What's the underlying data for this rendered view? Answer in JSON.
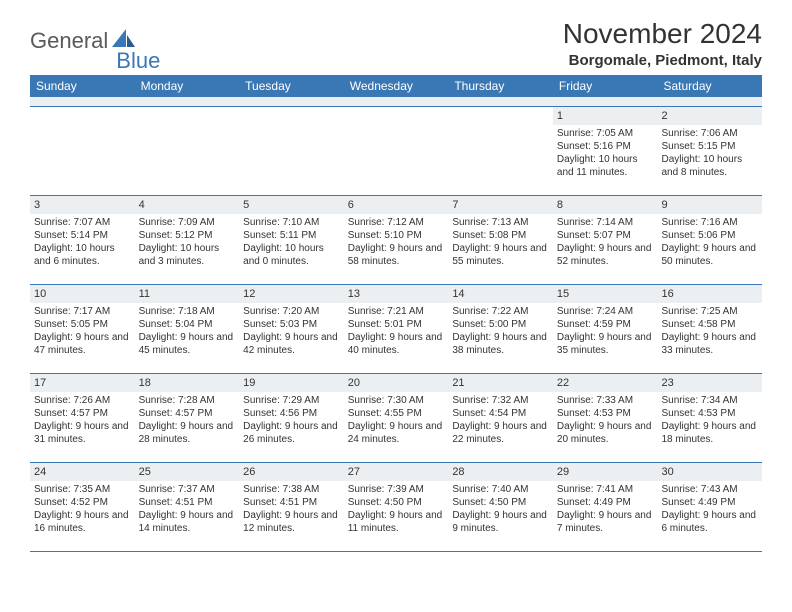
{
  "logo": {
    "part1": "General",
    "part2": "Blue"
  },
  "title": "November 2024",
  "location": "Borgomale, Piedmont, Italy",
  "colors": {
    "header_bg": "#3a78b5",
    "header_text": "#ffffff",
    "daynum_bg": "#eceff1",
    "border": "#3a78b5",
    "text": "#333333",
    "logo_gray": "#5a5a5a",
    "logo_blue": "#3a78b5",
    "background": "#ffffff"
  },
  "day_headers": [
    "Sunday",
    "Monday",
    "Tuesday",
    "Wednesday",
    "Thursday",
    "Friday",
    "Saturday"
  ],
  "weeks": [
    [
      {
        "empty": true
      },
      {
        "empty": true
      },
      {
        "empty": true
      },
      {
        "empty": true
      },
      {
        "empty": true
      },
      {
        "day": "1",
        "sunrise": "Sunrise: 7:05 AM",
        "sunset": "Sunset: 5:16 PM",
        "daylight": "Daylight: 10 hours and 11 minutes."
      },
      {
        "day": "2",
        "sunrise": "Sunrise: 7:06 AM",
        "sunset": "Sunset: 5:15 PM",
        "daylight": "Daylight: 10 hours and 8 minutes."
      }
    ],
    [
      {
        "day": "3",
        "sunrise": "Sunrise: 7:07 AM",
        "sunset": "Sunset: 5:14 PM",
        "daylight": "Daylight: 10 hours and 6 minutes."
      },
      {
        "day": "4",
        "sunrise": "Sunrise: 7:09 AM",
        "sunset": "Sunset: 5:12 PM",
        "daylight": "Daylight: 10 hours and 3 minutes."
      },
      {
        "day": "5",
        "sunrise": "Sunrise: 7:10 AM",
        "sunset": "Sunset: 5:11 PM",
        "daylight": "Daylight: 10 hours and 0 minutes."
      },
      {
        "day": "6",
        "sunrise": "Sunrise: 7:12 AM",
        "sunset": "Sunset: 5:10 PM",
        "daylight": "Daylight: 9 hours and 58 minutes."
      },
      {
        "day": "7",
        "sunrise": "Sunrise: 7:13 AM",
        "sunset": "Sunset: 5:08 PM",
        "daylight": "Daylight: 9 hours and 55 minutes."
      },
      {
        "day": "8",
        "sunrise": "Sunrise: 7:14 AM",
        "sunset": "Sunset: 5:07 PM",
        "daylight": "Daylight: 9 hours and 52 minutes."
      },
      {
        "day": "9",
        "sunrise": "Sunrise: 7:16 AM",
        "sunset": "Sunset: 5:06 PM",
        "daylight": "Daylight: 9 hours and 50 minutes."
      }
    ],
    [
      {
        "day": "10",
        "sunrise": "Sunrise: 7:17 AM",
        "sunset": "Sunset: 5:05 PM",
        "daylight": "Daylight: 9 hours and 47 minutes."
      },
      {
        "day": "11",
        "sunrise": "Sunrise: 7:18 AM",
        "sunset": "Sunset: 5:04 PM",
        "daylight": "Daylight: 9 hours and 45 minutes."
      },
      {
        "day": "12",
        "sunrise": "Sunrise: 7:20 AM",
        "sunset": "Sunset: 5:03 PM",
        "daylight": "Daylight: 9 hours and 42 minutes."
      },
      {
        "day": "13",
        "sunrise": "Sunrise: 7:21 AM",
        "sunset": "Sunset: 5:01 PM",
        "daylight": "Daylight: 9 hours and 40 minutes."
      },
      {
        "day": "14",
        "sunrise": "Sunrise: 7:22 AM",
        "sunset": "Sunset: 5:00 PM",
        "daylight": "Daylight: 9 hours and 38 minutes."
      },
      {
        "day": "15",
        "sunrise": "Sunrise: 7:24 AM",
        "sunset": "Sunset: 4:59 PM",
        "daylight": "Daylight: 9 hours and 35 minutes."
      },
      {
        "day": "16",
        "sunrise": "Sunrise: 7:25 AM",
        "sunset": "Sunset: 4:58 PM",
        "daylight": "Daylight: 9 hours and 33 minutes."
      }
    ],
    [
      {
        "day": "17",
        "sunrise": "Sunrise: 7:26 AM",
        "sunset": "Sunset: 4:57 PM",
        "daylight": "Daylight: 9 hours and 31 minutes."
      },
      {
        "day": "18",
        "sunrise": "Sunrise: 7:28 AM",
        "sunset": "Sunset: 4:57 PM",
        "daylight": "Daylight: 9 hours and 28 minutes."
      },
      {
        "day": "19",
        "sunrise": "Sunrise: 7:29 AM",
        "sunset": "Sunset: 4:56 PM",
        "daylight": "Daylight: 9 hours and 26 minutes."
      },
      {
        "day": "20",
        "sunrise": "Sunrise: 7:30 AM",
        "sunset": "Sunset: 4:55 PM",
        "daylight": "Daylight: 9 hours and 24 minutes."
      },
      {
        "day": "21",
        "sunrise": "Sunrise: 7:32 AM",
        "sunset": "Sunset: 4:54 PM",
        "daylight": "Daylight: 9 hours and 22 minutes."
      },
      {
        "day": "22",
        "sunrise": "Sunrise: 7:33 AM",
        "sunset": "Sunset: 4:53 PM",
        "daylight": "Daylight: 9 hours and 20 minutes."
      },
      {
        "day": "23",
        "sunrise": "Sunrise: 7:34 AM",
        "sunset": "Sunset: 4:53 PM",
        "daylight": "Daylight: 9 hours and 18 minutes."
      }
    ],
    [
      {
        "day": "24",
        "sunrise": "Sunrise: 7:35 AM",
        "sunset": "Sunset: 4:52 PM",
        "daylight": "Daylight: 9 hours and 16 minutes."
      },
      {
        "day": "25",
        "sunrise": "Sunrise: 7:37 AM",
        "sunset": "Sunset: 4:51 PM",
        "daylight": "Daylight: 9 hours and 14 minutes."
      },
      {
        "day": "26",
        "sunrise": "Sunrise: 7:38 AM",
        "sunset": "Sunset: 4:51 PM",
        "daylight": "Daylight: 9 hours and 12 minutes."
      },
      {
        "day": "27",
        "sunrise": "Sunrise: 7:39 AM",
        "sunset": "Sunset: 4:50 PM",
        "daylight": "Daylight: 9 hours and 11 minutes."
      },
      {
        "day": "28",
        "sunrise": "Sunrise: 7:40 AM",
        "sunset": "Sunset: 4:50 PM",
        "daylight": "Daylight: 9 hours and 9 minutes."
      },
      {
        "day": "29",
        "sunrise": "Sunrise: 7:41 AM",
        "sunset": "Sunset: 4:49 PM",
        "daylight": "Daylight: 9 hours and 7 minutes."
      },
      {
        "day": "30",
        "sunrise": "Sunrise: 7:43 AM",
        "sunset": "Sunset: 4:49 PM",
        "daylight": "Daylight: 9 hours and 6 minutes."
      }
    ]
  ]
}
